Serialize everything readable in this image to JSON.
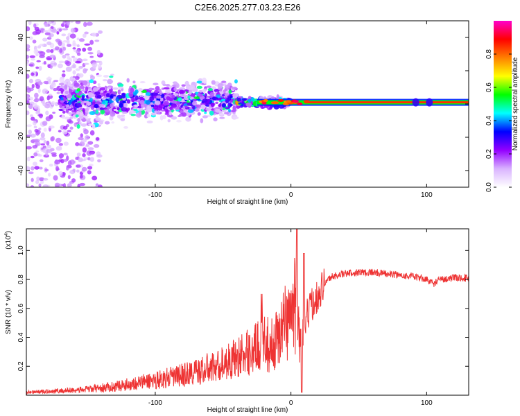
{
  "chart_data": [
    {
      "type": "heatmap",
      "title": "C2E6.2025.277.03.23.E26",
      "xlabel": "Height of straight line (km)",
      "ylabel": "Frequency (Hz)",
      "xlim": [
        -195,
        131
      ],
      "ylim": [
        -50,
        50
      ],
      "xticks": [
        -100,
        0,
        100
      ],
      "xtick_labels": [
        "-100",
        "0",
        "100"
      ],
      "yticks": [
        -40,
        -20,
        0,
        20,
        40
      ],
      "ytick_labels": [
        "-40",
        "-20",
        "0",
        "20",
        "40"
      ],
      "colorbar": {
        "label": "Normalized spectral amplitude",
        "range": [
          0,
          1
        ],
        "ticks": [
          0.0,
          0.2,
          0.4,
          0.6,
          0.8
        ],
        "tick_labels": [
          "0.0",
          "0.2",
          "0.4",
          "0.6",
          "0.8"
        ],
        "colors": [
          "#ffffff",
          "#d9b3ff",
          "#9400ff",
          "#0000ff",
          "#00ffff",
          "#00ff00",
          "#ffff00",
          "#ff8000",
          "#ff0000",
          "#ff00cc"
        ]
      },
      "regions": [
        {
          "x": [
            -195,
            -140
          ],
          "freq_center": 0,
          "freq_halfwidth": 50,
          "amplitude": 0.15
        },
        {
          "x": [
            -170,
            -40
          ],
          "freq_center": 2,
          "freq_halfwidth": 12,
          "amplitude": 0.3
        },
        {
          "x": [
            -40,
            0
          ],
          "freq_center": 1,
          "freq_halfwidth": 3,
          "amplitude": 0.6
        },
        {
          "x": [
            0,
            131
          ],
          "freq_center": 1,
          "freq_halfwidth": 2,
          "amplitude": 0.85
        }
      ]
    },
    {
      "type": "line",
      "xlabel": "Height of straight line (km)",
      "ylabel": "SNR (10 * v/v)",
      "scale_label": "(x10",
      "scale_exponent": "4",
      "scale_close": ")",
      "xlim": [
        -195,
        131
      ],
      "ylim": [
        0,
        1.15
      ],
      "xticks": [
        -100,
        0,
        100
      ],
      "xtick_labels": [
        "-100",
        "0",
        "100"
      ],
      "yticks": [
        0.2,
        0.4,
        0.6,
        0.8,
        1.0
      ],
      "ytick_labels": [
        "0.2",
        "0.4",
        "0.6",
        "0.8",
        "1.0"
      ],
      "series": [
        {
          "name": "SNR",
          "color": "#ee3333",
          "x": [
            -195,
            -170,
            -150,
            -130,
            -110,
            -90,
            -70,
            -55,
            -45,
            -35,
            -25,
            -20,
            -15,
            -10,
            -5,
            0,
            3,
            5,
            7,
            9,
            12,
            15,
            20,
            25,
            30,
            40,
            50,
            60,
            70,
            80,
            90,
            100,
            105,
            110,
            120,
            131
          ],
          "y": [
            0.02,
            0.03,
            0.04,
            0.06,
            0.09,
            0.12,
            0.16,
            0.2,
            0.24,
            0.28,
            0.33,
            0.38,
            0.33,
            0.4,
            0.5,
            0.56,
            0.62,
            0.6,
            0.3,
            0.45,
            0.55,
            0.62,
            0.7,
            0.78,
            0.82,
            0.84,
            0.85,
            0.85,
            0.84,
            0.83,
            0.82,
            0.8,
            0.77,
            0.8,
            0.81,
            0.81
          ]
        }
      ]
    }
  ]
}
